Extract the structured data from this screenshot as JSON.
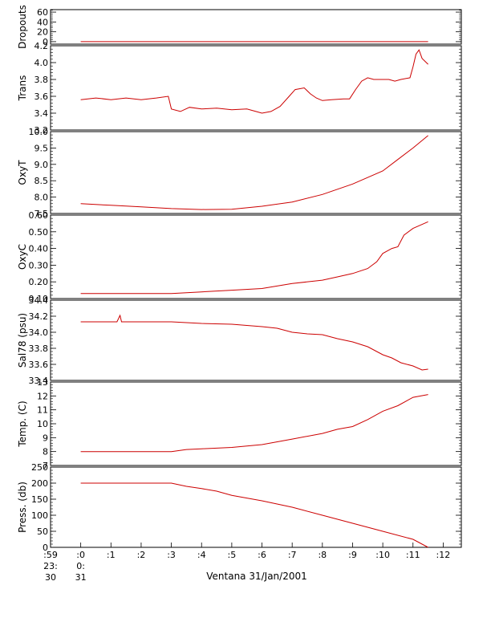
{
  "chart_data": {
    "type": "line",
    "caption": "Ventana 31/Jan/2001",
    "line_color": "#cc0000",
    "x_axis": {
      "ticks": [
        ":59",
        ":0",
        ":1",
        ":2",
        ":3",
        ":4",
        ":5",
        ":6",
        ":7",
        ":8",
        ":9",
        ":10",
        ":11",
        ":12"
      ],
      "hour_labels": [
        {
          "under": ":59",
          "hour": "23:",
          "day": "30"
        },
        {
          "under": ":0",
          "hour": "0:",
          "day": "31"
        }
      ]
    },
    "panels": [
      {
        "name": "dropouts",
        "ylabel": "Dropouts",
        "ylim": [
          -5,
          65
        ],
        "ticks": [
          "0",
          "20",
          "40",
          "60"
        ],
        "tick_values": [
          0,
          20,
          40,
          60
        ],
        "points": [
          [
            0,
            0
          ],
          [
            5.75,
            0
          ],
          [
            11.5,
            0
          ]
        ]
      },
      {
        "name": "transmission",
        "ylabel": "Trans",
        "ylim": [
          3.2,
          4.2
        ],
        "ticks": [
          "3.2",
          "3.4",
          "3.6",
          "3.8",
          "4.0",
          "4.2"
        ],
        "tick_values": [
          3.2,
          3.4,
          3.6,
          3.8,
          4.0,
          4.2
        ],
        "points": [
          [
            0,
            3.56
          ],
          [
            0.5,
            3.58
          ],
          [
            1.0,
            3.56
          ],
          [
            1.5,
            3.58
          ],
          [
            2.0,
            3.56
          ],
          [
            2.5,
            3.58
          ],
          [
            2.9,
            3.6
          ],
          [
            3.0,
            3.45
          ],
          [
            3.3,
            3.42
          ],
          [
            3.6,
            3.47
          ],
          [
            4.0,
            3.45
          ],
          [
            4.5,
            3.46
          ],
          [
            5.0,
            3.44
          ],
          [
            5.5,
            3.45
          ],
          [
            5.8,
            3.42
          ],
          [
            6.0,
            3.4
          ],
          [
            6.3,
            3.42
          ],
          [
            6.6,
            3.48
          ],
          [
            6.9,
            3.6
          ],
          [
            7.1,
            3.68
          ],
          [
            7.4,
            3.7
          ],
          [
            7.6,
            3.63
          ],
          [
            7.8,
            3.58
          ],
          [
            8.0,
            3.55
          ],
          [
            8.3,
            3.56
          ],
          [
            8.7,
            3.57
          ],
          [
            8.9,
            3.57
          ],
          [
            9.1,
            3.68
          ],
          [
            9.3,
            3.78
          ],
          [
            9.5,
            3.82
          ],
          [
            9.7,
            3.8
          ],
          [
            10.0,
            3.8
          ],
          [
            10.2,
            3.8
          ],
          [
            10.4,
            3.78
          ],
          [
            10.6,
            3.8
          ],
          [
            10.9,
            3.82
          ],
          [
            11.0,
            3.95
          ],
          [
            11.1,
            4.1
          ],
          [
            11.2,
            4.15
          ],
          [
            11.3,
            4.05
          ],
          [
            11.5,
            3.98
          ]
        ]
      },
      {
        "name": "oxygen-temperature",
        "ylabel": "OxyT",
        "ylim": [
          7.5,
          10.0
        ],
        "ticks": [
          "7.5",
          "8.0",
          "8.5",
          "9.0",
          "9.5",
          "10.0"
        ],
        "tick_values": [
          7.5,
          8.0,
          8.5,
          9.0,
          9.5,
          10.0
        ],
        "points": [
          [
            0,
            7.8
          ],
          [
            1,
            7.75
          ],
          [
            2,
            7.7
          ],
          [
            3,
            7.65
          ],
          [
            4,
            7.62
          ],
          [
            5,
            7.63
          ],
          [
            6,
            7.72
          ],
          [
            7,
            7.85
          ],
          [
            8,
            8.08
          ],
          [
            9,
            8.4
          ],
          [
            10,
            8.8
          ],
          [
            10.5,
            9.15
          ],
          [
            11,
            9.5
          ],
          [
            11.5,
            9.88
          ]
        ]
      },
      {
        "name": "oxygen-concentration",
        "ylabel": "OxyC",
        "ylim": [
          0.1,
          0.6
        ],
        "ticks": [
          "0.10",
          "0.20",
          "0.30",
          "0.40",
          "0.50",
          "0.60"
        ],
        "tick_values": [
          0.1,
          0.2,
          0.3,
          0.4,
          0.5,
          0.6
        ],
        "points": [
          [
            0,
            0.13
          ],
          [
            1,
            0.13
          ],
          [
            2,
            0.13
          ],
          [
            3,
            0.13
          ],
          [
            4,
            0.14
          ],
          [
            5,
            0.15
          ],
          [
            6,
            0.16
          ],
          [
            7,
            0.19
          ],
          [
            8,
            0.21
          ],
          [
            8.5,
            0.23
          ],
          [
            9,
            0.25
          ],
          [
            9.5,
            0.28
          ],
          [
            9.8,
            0.32
          ],
          [
            10.0,
            0.37
          ],
          [
            10.3,
            0.4
          ],
          [
            10.5,
            0.41
          ],
          [
            10.7,
            0.48
          ],
          [
            11.0,
            0.52
          ],
          [
            11.5,
            0.56
          ]
        ]
      },
      {
        "name": "salinity",
        "ylabel": "Sal78 (psu)",
        "ylim": [
          33.4,
          34.4
        ],
        "ticks": [
          "33.4",
          "33.6",
          "33.8",
          "34.0",
          "34.2",
          "34.4"
        ],
        "tick_values": [
          33.4,
          33.6,
          33.8,
          34.0,
          34.2,
          34.4
        ],
        "points": [
          [
            0,
            34.13
          ],
          [
            1.2,
            34.13
          ],
          [
            1.3,
            34.21
          ],
          [
            1.35,
            34.13
          ],
          [
            2,
            34.13
          ],
          [
            3,
            34.13
          ],
          [
            3.5,
            34.12
          ],
          [
            4,
            34.11
          ],
          [
            5,
            34.1
          ],
          [
            6,
            34.07
          ],
          [
            6.5,
            34.05
          ],
          [
            7,
            34.0
          ],
          [
            7.5,
            33.98
          ],
          [
            8,
            33.97
          ],
          [
            8.5,
            33.92
          ],
          [
            9,
            33.88
          ],
          [
            9.5,
            33.82
          ],
          [
            10,
            33.72
          ],
          [
            10.3,
            33.68
          ],
          [
            10.6,
            33.62
          ],
          [
            11,
            33.58
          ],
          [
            11.3,
            33.53
          ],
          [
            11.5,
            33.54
          ]
        ]
      },
      {
        "name": "temperature",
        "ylabel": "Temp. (C)",
        "ylim": [
          7,
          13
        ],
        "ticks": [
          "7",
          "8",
          "9",
          "10",
          "11",
          "12",
          "13"
        ],
        "tick_values": [
          7,
          8,
          9,
          10,
          11,
          12,
          13
        ],
        "points": [
          [
            0,
            8.0
          ],
          [
            3,
            8.0
          ],
          [
            3.5,
            8.15
          ],
          [
            4,
            8.2
          ],
          [
            5,
            8.3
          ],
          [
            6,
            8.5
          ],
          [
            7,
            8.9
          ],
          [
            8,
            9.3
          ],
          [
            8.5,
            9.6
          ],
          [
            9,
            9.8
          ],
          [
            9.5,
            10.3
          ],
          [
            10,
            10.9
          ],
          [
            10.5,
            11.3
          ],
          [
            11,
            11.9
          ],
          [
            11.5,
            12.1
          ]
        ]
      },
      {
        "name": "pressure",
        "ylabel": "Press. (db)",
        "ylim": [
          0,
          250
        ],
        "ticks": [
          "0",
          "50",
          "100",
          "150",
          "200",
          "250"
        ],
        "tick_values": [
          0,
          50,
          100,
          150,
          200,
          250
        ],
        "points": [
          [
            0,
            200
          ],
          [
            1,
            200
          ],
          [
            2,
            200
          ],
          [
            3,
            200
          ],
          [
            3.5,
            190
          ],
          [
            4,
            183
          ],
          [
            4.5,
            175
          ],
          [
            5,
            162
          ],
          [
            6,
            145
          ],
          [
            7,
            125
          ],
          [
            8,
            100
          ],
          [
            9,
            75
          ],
          [
            10,
            50
          ],
          [
            11,
            25
          ],
          [
            11.5,
            0
          ]
        ]
      }
    ]
  }
}
